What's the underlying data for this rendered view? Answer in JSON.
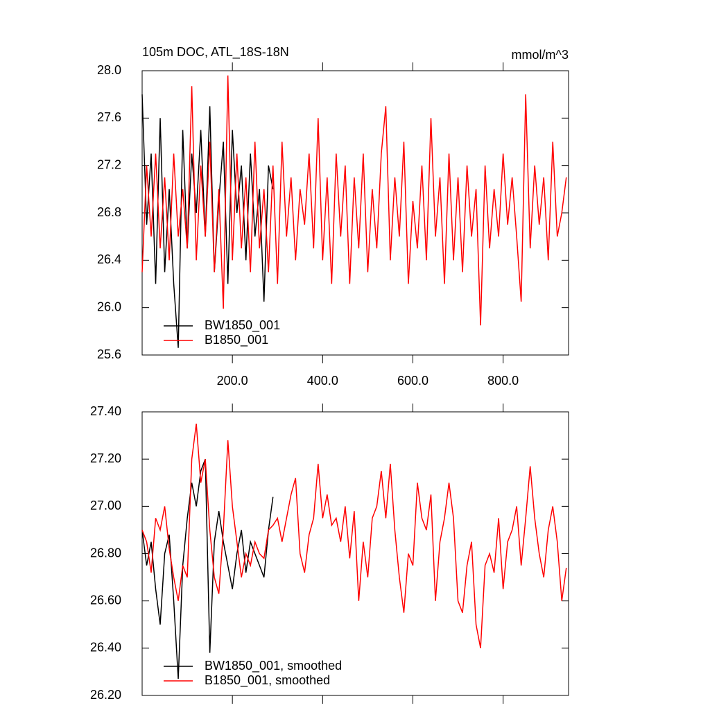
{
  "chart_data": [
    {
      "type": "line",
      "title": "105m DOC, ATL_18S-18N",
      "units": "mmol/m^3",
      "xlim": [
        0,
        945
      ],
      "xticks": [
        {
          "value": 200,
          "label": "200.0"
        },
        {
          "value": 400,
          "label": "400.0"
        },
        {
          "value": 600,
          "label": "600.0"
        },
        {
          "value": 800,
          "label": "800.0"
        }
      ],
      "ylim": [
        25.6,
        28.0
      ],
      "yticks": [
        {
          "value": 25.6,
          "label": "25.6"
        },
        {
          "value": 26.0,
          "label": "26.0"
        },
        26.4,
        26.8,
        27.2,
        27.6,
        {
          "value": 28.0,
          "label": "28.0"
        }
      ],
      "series": [
        {
          "name": "BW1850_001",
          "color": "#000000",
          "x": [
            0,
            10,
            20,
            30,
            40,
            50,
            60,
            70,
            80,
            90,
            100,
            110,
            120,
            130,
            140,
            150,
            160,
            170,
            180,
            190,
            200,
            210,
            220,
            230,
            240,
            250,
            260,
            270,
            280,
            290
          ],
          "values": [
            27.8,
            26.7,
            27.3,
            26.2,
            27.6,
            26.3,
            27.0,
            26.2,
            25.66,
            27.5,
            26.5,
            27.3,
            26.8,
            27.5,
            26.6,
            27.7,
            26.3,
            26.9,
            27.4,
            26.2,
            27.5,
            26.8,
            27.2,
            26.4,
            27.3,
            26.6,
            27.0,
            26.05,
            27.2,
            27.0
          ]
        },
        {
          "name": "B1850_001",
          "color": "#ff0000",
          "x": [
            0,
            10,
            20,
            30,
            40,
            50,
            60,
            70,
            80,
            90,
            100,
            110,
            120,
            130,
            140,
            150,
            160,
            170,
            180,
            190,
            200,
            210,
            220,
            230,
            240,
            250,
            260,
            270,
            280,
            290,
            300,
            310,
            320,
            330,
            340,
            350,
            360,
            370,
            380,
            390,
            400,
            410,
            420,
            430,
            440,
            450,
            460,
            470,
            480,
            490,
            500,
            510,
            520,
            530,
            540,
            550,
            560,
            570,
            580,
            590,
            600,
            610,
            620,
            630,
            640,
            650,
            660,
            670,
            680,
            690,
            700,
            710,
            720,
            730,
            740,
            750,
            760,
            770,
            780,
            790,
            800,
            810,
            820,
            830,
            840,
            850,
            860,
            870,
            880,
            890,
            900,
            910,
            920,
            930,
            940
          ],
          "values": [
            26.3,
            27.2,
            26.6,
            27.3,
            26.5,
            27.1,
            26.4,
            27.3,
            26.6,
            27.0,
            26.5,
            27.87,
            26.4,
            27.2,
            26.6,
            27.4,
            26.3,
            27.0,
            25.99,
            27.96,
            26.4,
            27.3,
            26.5,
            27.1,
            26.3,
            27.4,
            26.5,
            27.0,
            26.3,
            27.2,
            26.2,
            27.4,
            26.6,
            27.1,
            26.4,
            27.0,
            26.7,
            27.3,
            26.5,
            27.6,
            26.4,
            27.1,
            26.2,
            27.3,
            26.6,
            27.2,
            26.2,
            27.1,
            26.5,
            27.3,
            26.3,
            27.0,
            26.5,
            27.3,
            27.7,
            26.4,
            27.1,
            26.6,
            27.4,
            26.2,
            26.9,
            26.5,
            27.2,
            26.4,
            27.6,
            26.6,
            27.1,
            26.2,
            27.3,
            26.4,
            27.1,
            26.3,
            27.2,
            26.6,
            27.0,
            25.85,
            27.2,
            26.5,
            27.0,
            26.6,
            27.3,
            26.7,
            27.1,
            26.6,
            26.05,
            27.8,
            26.5,
            27.2,
            26.7,
            27.1,
            26.4,
            27.4,
            26.6,
            26.8,
            27.1
          ]
        }
      ]
    },
    {
      "type": "line",
      "xlim": [
        0,
        945
      ],
      "xticks": [
        200,
        400,
        600,
        800
      ],
      "ylim": [
        26.2,
        27.4
      ],
      "yticks": [
        {
          "value": 26.2,
          "label": "26.20"
        },
        {
          "value": 26.4,
          "label": "26.40"
        },
        {
          "value": 26.6,
          "label": "26.60"
        },
        {
          "value": 26.8,
          "label": "26.80"
        },
        {
          "value": 27.0,
          "label": "27.00"
        },
        {
          "value": 27.2,
          "label": "27.20"
        },
        {
          "value": 27.4,
          "label": "27.40"
        }
      ],
      "series": [
        {
          "name": "BW1850_001, smoothed",
          "color": "#000000",
          "x": [
            0,
            10,
            20,
            30,
            40,
            50,
            60,
            70,
            80,
            90,
            100,
            110,
            120,
            130,
            140,
            150,
            160,
            170,
            180,
            190,
            200,
            210,
            220,
            230,
            240,
            250,
            260,
            270,
            280,
            290
          ],
          "values": [
            26.9,
            26.75,
            26.85,
            26.65,
            26.5,
            26.8,
            26.88,
            26.6,
            26.27,
            26.75,
            26.95,
            27.1,
            27.0,
            27.15,
            27.2,
            26.38,
            26.85,
            26.98,
            26.85,
            26.75,
            26.65,
            26.8,
            26.9,
            26.72,
            26.85,
            26.8,
            26.75,
            26.7,
            26.9,
            27.04
          ]
        },
        {
          "name": "B1850_001, smoothed",
          "color": "#ff0000",
          "x": [
            0,
            10,
            20,
            30,
            40,
            50,
            60,
            70,
            80,
            90,
            100,
            110,
            120,
            130,
            140,
            150,
            160,
            170,
            180,
            190,
            200,
            210,
            220,
            230,
            240,
            250,
            260,
            270,
            280,
            290,
            300,
            310,
            320,
            330,
            340,
            350,
            360,
            370,
            380,
            390,
            400,
            410,
            420,
            430,
            440,
            450,
            460,
            470,
            480,
            490,
            500,
            510,
            520,
            530,
            540,
            550,
            560,
            570,
            580,
            590,
            600,
            610,
            620,
            630,
            640,
            650,
            660,
            670,
            680,
            690,
            700,
            710,
            720,
            730,
            740,
            750,
            760,
            770,
            780,
            790,
            800,
            810,
            820,
            830,
            840,
            850,
            860,
            870,
            880,
            890,
            900,
            910,
            920,
            930,
            940
          ],
          "values": [
            26.9,
            26.85,
            26.72,
            26.95,
            26.9,
            27.0,
            26.82,
            26.7,
            26.6,
            26.75,
            26.7,
            27.2,
            27.35,
            27.1,
            27.2,
            26.9,
            26.7,
            26.63,
            26.9,
            27.28,
            27.0,
            26.85,
            26.7,
            26.8,
            26.75,
            26.85,
            26.8,
            26.78,
            26.9,
            26.92,
            26.95,
            26.85,
            26.95,
            27.05,
            27.12,
            26.8,
            26.72,
            26.88,
            26.95,
            27.18,
            26.95,
            27.05,
            26.92,
            26.95,
            26.85,
            27.0,
            26.78,
            26.98,
            26.6,
            26.85,
            26.7,
            26.95,
            27.0,
            27.15,
            26.95,
            27.18,
            26.9,
            26.7,
            26.55,
            26.8,
            26.75,
            27.1,
            26.95,
            26.9,
            27.05,
            26.6,
            26.85,
            26.95,
            27.1,
            26.95,
            26.6,
            26.55,
            26.75,
            26.85,
            26.5,
            26.4,
            26.75,
            26.8,
            26.72,
            26.95,
            26.65,
            26.85,
            26.9,
            27.0,
            26.75,
            26.95,
            27.17,
            26.95,
            26.8,
            26.7,
            26.9,
            27.0,
            26.85,
            26.6,
            26.74
          ]
        }
      ]
    }
  ]
}
